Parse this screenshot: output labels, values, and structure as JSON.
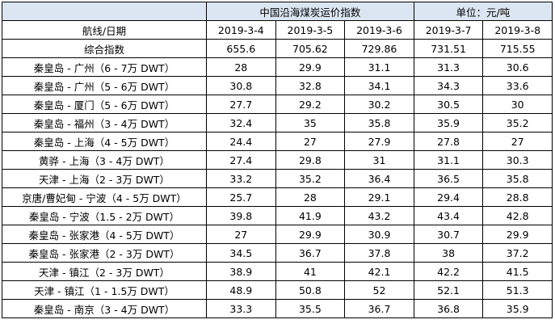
{
  "title": {
    "text": "中国沿海煤炭运价指数",
    "unit": "单位：元/吨"
  },
  "header": [
    "航线/日期",
    "2019-3-4",
    "2019-3-5",
    "2019-3-6",
    "2019-3-7",
    "2019-3-8"
  ],
  "rows": [
    [
      "综合指数",
      "655.6",
      "705.62",
      "729.86",
      "731.51",
      "715.55"
    ],
    [
      "秦皇岛 - 广州（6 - 7万 DWT）",
      "28",
      "29.9",
      "31.1",
      "31.3",
      "30.6"
    ],
    [
      "秦皇岛 - 广州（5 - 6万 DWT）",
      "30.8",
      "32.8",
      "34.1",
      "34.3",
      "33.6"
    ],
    [
      "秦皇岛 - 厦门（5 - 6万 DWT）",
      "27.7",
      "29.2",
      "30.2",
      "30.5",
      "30"
    ],
    [
      "秦皇岛 - 福州（3 - 4万 DWT）",
      "32.4",
      "35",
      "35.8",
      "35.9",
      "35.2"
    ],
    [
      "秦皇岛 - 上海（4 - 5万 DWT）",
      "24.4",
      "27",
      "27.9",
      "27.8",
      "27"
    ],
    [
      "黄骅 - 上海（3 - 4万 DWT）",
      "27.4",
      "29.8",
      "31",
      "31.1",
      "30.3"
    ],
    [
      "天津 - 上海（2 - 3万 DWT）",
      "33.2",
      "35.2",
      "36.4",
      "36.5",
      "35.8"
    ],
    [
      "京唐/曹妃甸 - 宁波（4 - 5万 DWT）",
      "25.7",
      "28",
      "29.1",
      "29.4",
      "28.8"
    ],
    [
      "秦皇岛 - 宁波（1.5 - 2万 DWT）",
      "39.8",
      "41.9",
      "43.2",
      "43.4",
      "42.8"
    ],
    [
      "秦皇岛 - 张家港（4 - 5万 DWT）",
      "27",
      "29.9",
      "30.9",
      "30.7",
      "29.9"
    ],
    [
      "秦皇岛 - 张家港（2 - 3万 DWT）",
      "34.5",
      "36.7",
      "37.8",
      "38",
      "37.2"
    ],
    [
      "天津 - 镇江（2 - 3万 DWT）",
      "38.9",
      "41",
      "42.1",
      "42.2",
      "41.5"
    ],
    [
      "天津 - 镇江（1 - 1.5万 DWT）",
      "48.9",
      "50.8",
      "52",
      "52.1",
      "51.3"
    ],
    [
      "秦皇岛 - 南京（3 - 4万 DWT）",
      "33.3",
      "35.5",
      "36.7",
      "36.8",
      "35.9"
    ]
  ]
}
